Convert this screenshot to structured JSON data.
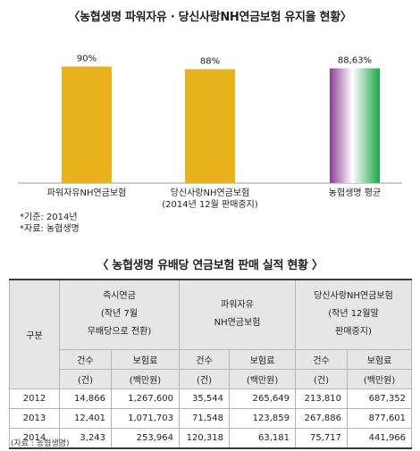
{
  "chart_title": "〈농협생명 파워자유 · 당신사랑NH연금보험 유지율 현황〉",
  "chart_data": {
    "type": "bar",
    "categories": [
      "파워자유NH연금보험",
      "당신사랑NH연금보험",
      "농협생명 평균"
    ],
    "category_sublabels": [
      "",
      "(2014년 12월 판매중지)",
      ""
    ],
    "values": [
      90,
      88,
      88.63
    ],
    "data_labels": [
      "90%",
      "88%",
      "88,63%"
    ],
    "ylim": [
      0,
      100
    ],
    "colors": [
      "#e8b21c",
      "#e8b21c",
      "gradient-purple-white-green"
    ],
    "grid": false
  },
  "notes": [
    "*기준: 2014년",
    "*자료: 농협생명"
  ],
  "table_title": "〈 농협생명 유배당 연금보험 판매 실적 현황 〉",
  "table": {
    "row_header": "구분",
    "groups": [
      {
        "label_lines": [
          "즉시연금",
          "(작년 7월",
          "무배당으로 전환)"
        ]
      },
      {
        "label_lines": [
          "파워자유",
          "NH연금보험"
        ]
      },
      {
        "label_lines": [
          "당신사랑NH연금보험",
          "(작년 12월말",
          "판매중지)"
        ]
      }
    ],
    "sub_top": [
      "건수",
      "보험료",
      "건수",
      "보험료",
      "건수",
      "보험료"
    ],
    "sub_bottom": [
      "(건)",
      "(백만원)",
      "(건)",
      "(백만원)",
      "(건)",
      "(백만원)"
    ],
    "rows": [
      {
        "year": "2012",
        "cells": [
          "14,866",
          "1,267,600",
          "35,544",
          "265,649",
          "213,810",
          "687,352"
        ]
      },
      {
        "year": "2013",
        "cells": [
          "12,401",
          "1,071,703",
          "71,548",
          "123,859",
          "267,886",
          "877,601"
        ]
      },
      {
        "year": "2014",
        "cells": [
          "3,243",
          "253,964",
          "120,318",
          "63,181",
          "75,717",
          "441,966"
        ]
      }
    ]
  },
  "source": "(자료 : 농협생명)",
  "colors": {
    "bar": "#e8b21c",
    "avg_purple": "#8c3c96",
    "avg_green": "#1aa64a",
    "header_bg": "#e6e6e6"
  }
}
